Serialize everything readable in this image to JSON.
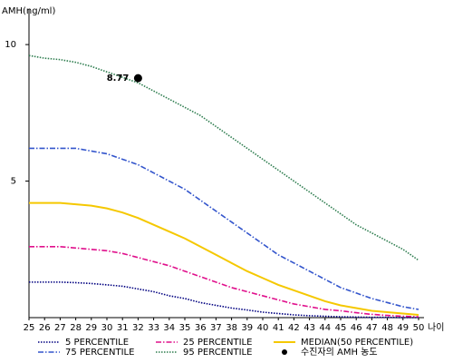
{
  "chart_data": {
    "type": "line",
    "y_label": "AMH(ng/ml)",
    "x_label": "나이",
    "x": [
      25,
      26,
      27,
      28,
      29,
      30,
      31,
      32,
      33,
      34,
      35,
      36,
      37,
      38,
      39,
      40,
      41,
      42,
      43,
      44,
      45,
      46,
      47,
      48,
      49,
      50
    ],
    "xlim": [
      25,
      50
    ],
    "ylim": [
      0,
      11.3
    ],
    "yticks": [
      5,
      10
    ],
    "series": [
      {
        "name": "5 PERCENTILE",
        "color": "#000080",
        "dash": "dotted",
        "values": [
          1.3,
          1.3,
          1.3,
          1.28,
          1.25,
          1.2,
          1.15,
          1.05,
          0.95,
          0.8,
          0.7,
          0.55,
          0.45,
          0.35,
          0.28,
          0.2,
          0.15,
          0.1,
          0.07,
          0.05,
          0.03,
          0.02,
          0.01,
          0.01,
          0,
          0
        ]
      },
      {
        "name": "75 PERCENTILE",
        "color": "#3355cc",
        "dash": "dashdot",
        "values": [
          6.2,
          6.2,
          6.2,
          6.2,
          6.1,
          6.0,
          5.8,
          5.6,
          5.3,
          5.0,
          4.7,
          4.3,
          3.9,
          3.5,
          3.1,
          2.7,
          2.3,
          2.0,
          1.7,
          1.4,
          1.1,
          0.9,
          0.7,
          0.55,
          0.4,
          0.3
        ]
      },
      {
        "name": "25 PERCENTILE",
        "color": "#e0108c",
        "dash": "dashdot",
        "values": [
          2.6,
          2.6,
          2.6,
          2.55,
          2.5,
          2.45,
          2.35,
          2.2,
          2.05,
          1.9,
          1.7,
          1.5,
          1.3,
          1.1,
          0.95,
          0.8,
          0.65,
          0.5,
          0.4,
          0.3,
          0.25,
          0.18,
          0.12,
          0.08,
          0.05,
          0.03
        ]
      },
      {
        "name": "95 PERCENTILE",
        "color": "#2e7d4f",
        "dash": "dotted",
        "values": [
          9.6,
          9.5,
          9.45,
          9.35,
          9.2,
          9.0,
          8.8,
          8.6,
          8.3,
          8.0,
          7.7,
          7.4,
          7.0,
          6.6,
          6.2,
          5.8,
          5.4,
          5.0,
          4.6,
          4.2,
          3.8,
          3.4,
          3.1,
          2.8,
          2.5,
          2.1
        ]
      },
      {
        "name": "MEDIAN(50 PERCENTILE)",
        "color": "#f5c800",
        "dash": "solid",
        "values": [
          4.2,
          4.2,
          4.2,
          4.15,
          4.1,
          4.0,
          3.85,
          3.65,
          3.4,
          3.15,
          2.9,
          2.6,
          2.3,
          2.0,
          1.7,
          1.45,
          1.2,
          1.0,
          0.8,
          0.6,
          0.45,
          0.35,
          0.25,
          0.2,
          0.15,
          0.1
        ]
      }
    ],
    "point": {
      "name": "수진자의 AMH 농도",
      "color": "#000000",
      "x": 32,
      "y": 8.77
    }
  }
}
